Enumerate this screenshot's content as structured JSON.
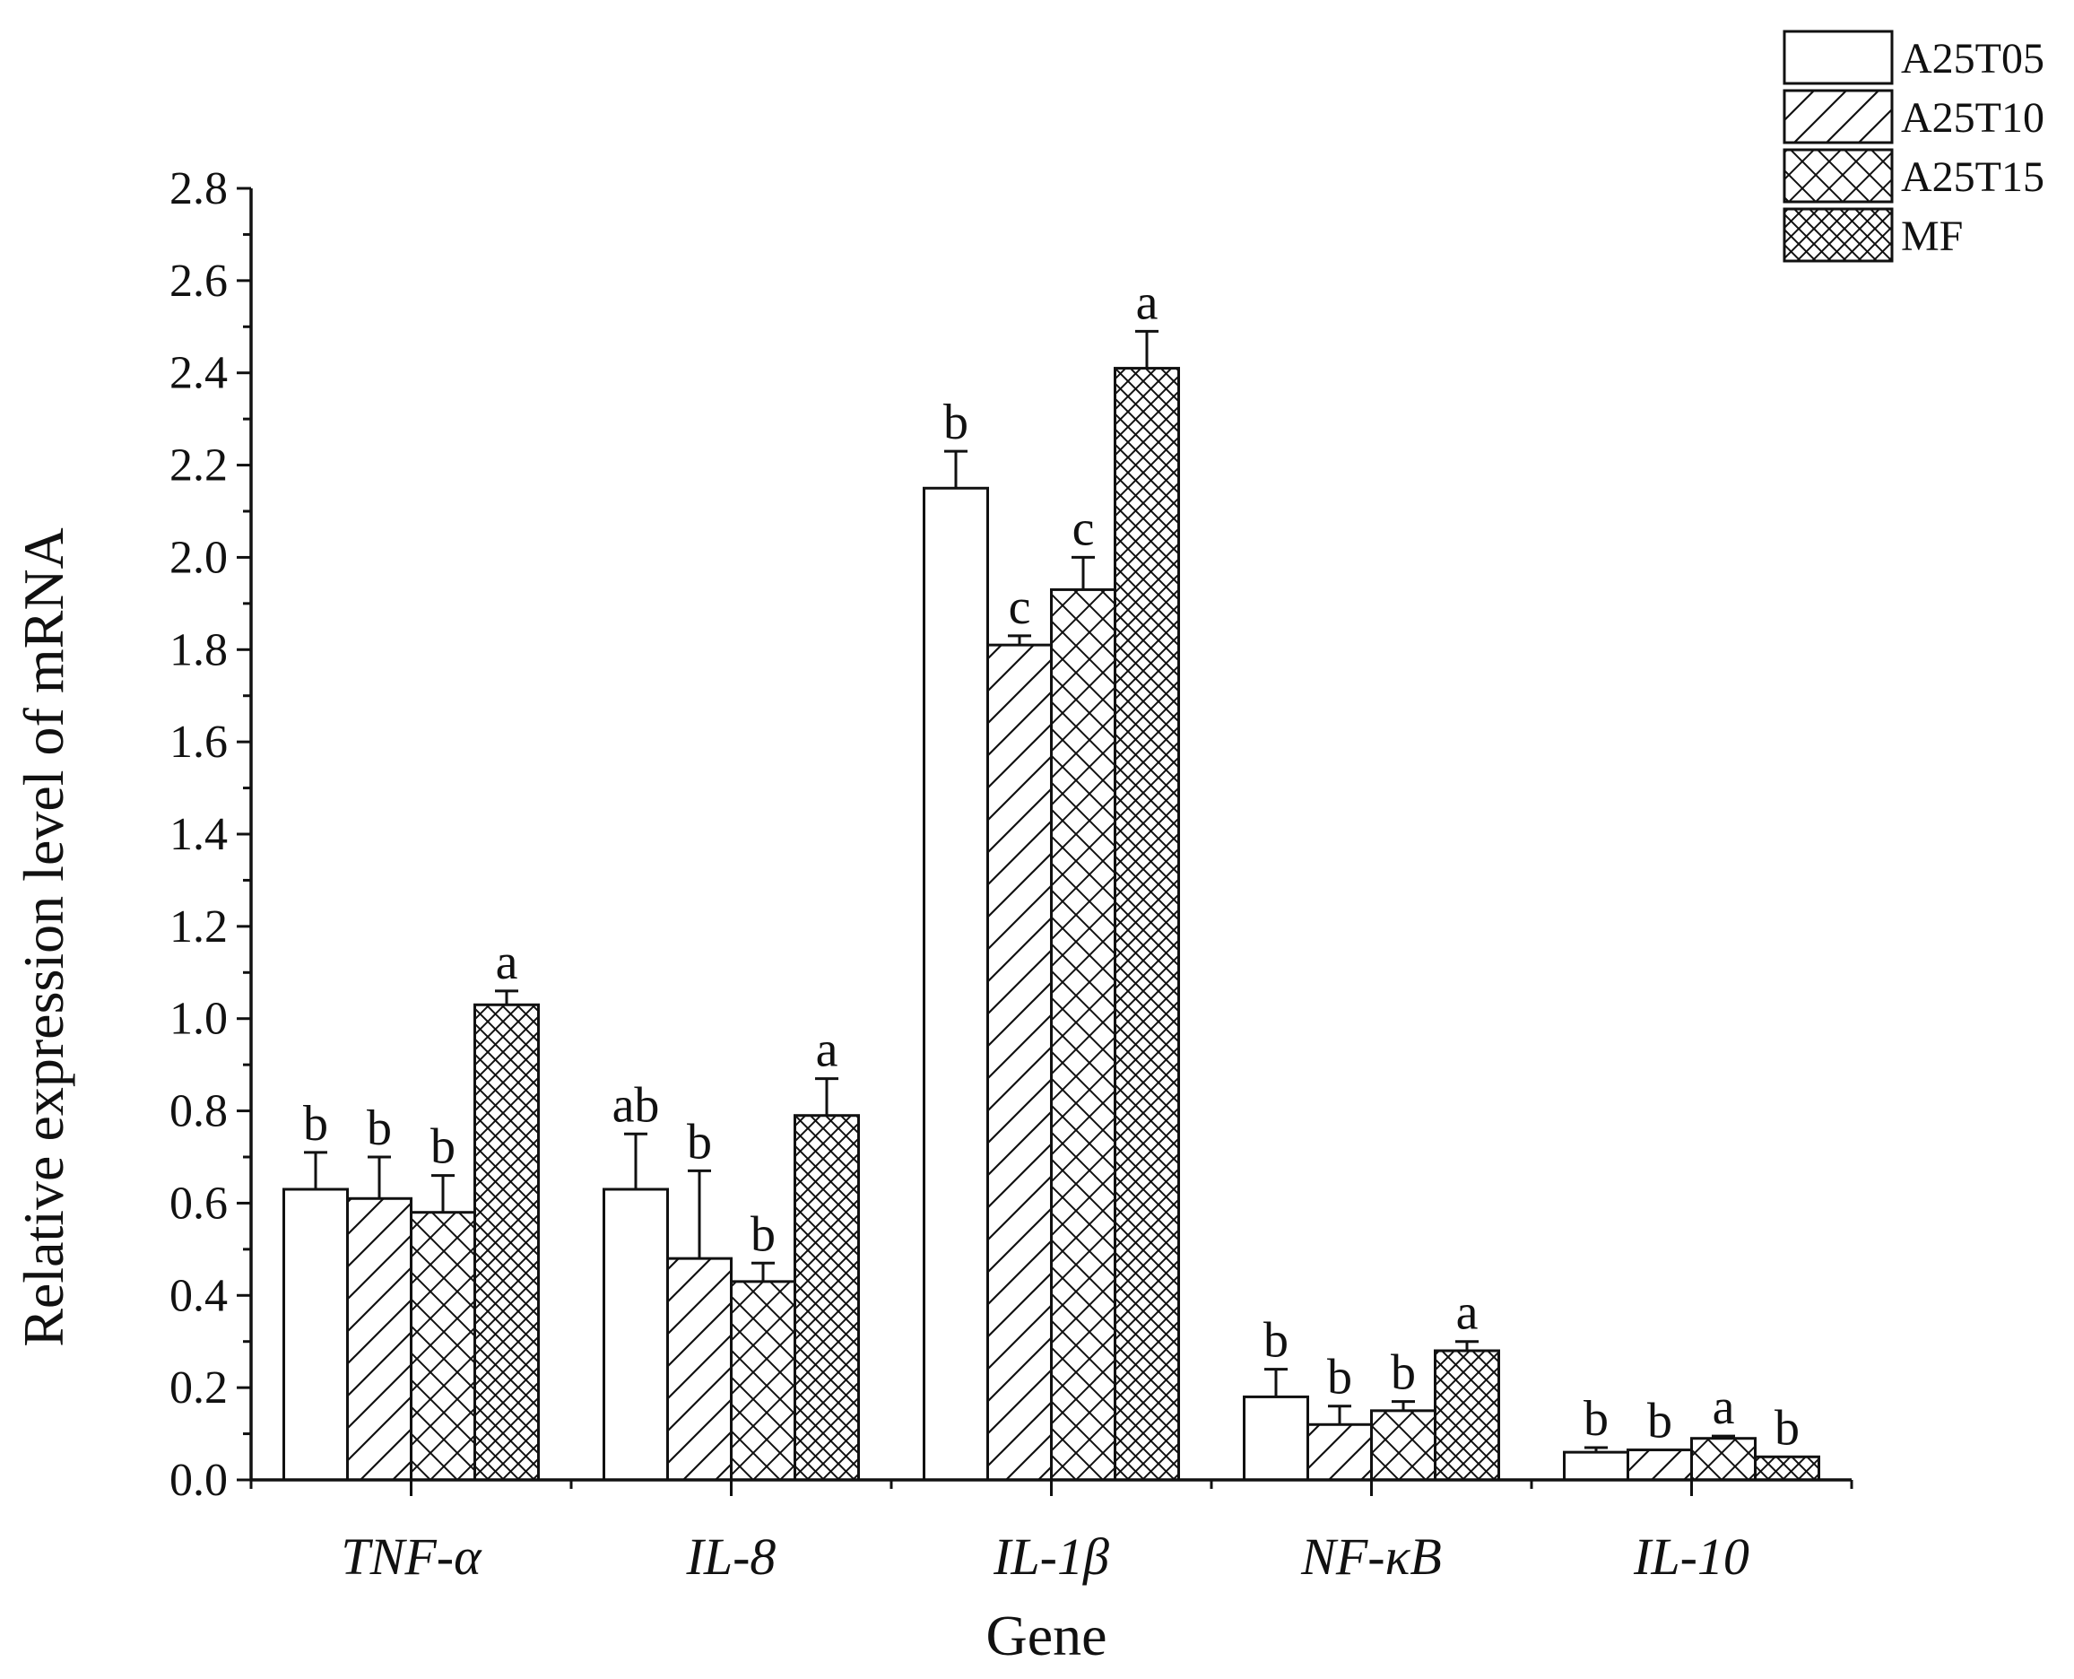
{
  "chart_data": {
    "type": "bar",
    "xlabel": "Gene",
    "ylabel": "Relative expression level of mRNA",
    "ylim": [
      0,
      2.8
    ],
    "yticks": [
      "0.0",
      "0.2",
      "0.4",
      "0.6",
      "0.8",
      "1.0",
      "1.2",
      "1.4",
      "1.6",
      "1.8",
      "2.0",
      "2.2",
      "2.4",
      "2.6",
      "2.8"
    ],
    "categories": [
      "TNF-α",
      "IL-8",
      "IL-1β",
      "NF-κB",
      "IL-10"
    ],
    "legend_position": "top-right",
    "grid": false,
    "series": [
      {
        "name": "A25T05",
        "pattern": "none",
        "values": [
          0.63,
          0.63,
          2.15,
          0.18,
          0.06
        ],
        "errors": [
          0.08,
          0.12,
          0.08,
          0.06,
          0.01
        ],
        "letters": [
          "b",
          "ab",
          "b",
          "b",
          "b"
        ]
      },
      {
        "name": "A25T10",
        "pattern": "diagonal",
        "values": [
          0.61,
          0.48,
          1.81,
          0.12,
          0.065
        ],
        "errors": [
          0.09,
          0.19,
          0.02,
          0.04,
          0.0
        ],
        "letters": [
          "b",
          "b",
          "c",
          "b",
          "b"
        ]
      },
      {
        "name": "A25T15",
        "pattern": "crosshatch",
        "values": [
          0.58,
          0.43,
          1.93,
          0.15,
          0.09
        ],
        "errors": [
          0.08,
          0.04,
          0.07,
          0.02,
          0.005
        ],
        "letters": [
          "b",
          "b",
          "c",
          "b",
          "a"
        ]
      },
      {
        "name": "MF",
        "pattern": "dense-crosshatch",
        "values": [
          1.03,
          0.79,
          2.41,
          0.28,
          0.05
        ],
        "errors": [
          0.03,
          0.08,
          0.08,
          0.02,
          0.0
        ],
        "letters": [
          "a",
          "a",
          "a",
          "a",
          "b"
        ]
      }
    ]
  },
  "colors": {
    "ink": "#111111",
    "background": "#ffffff"
  }
}
